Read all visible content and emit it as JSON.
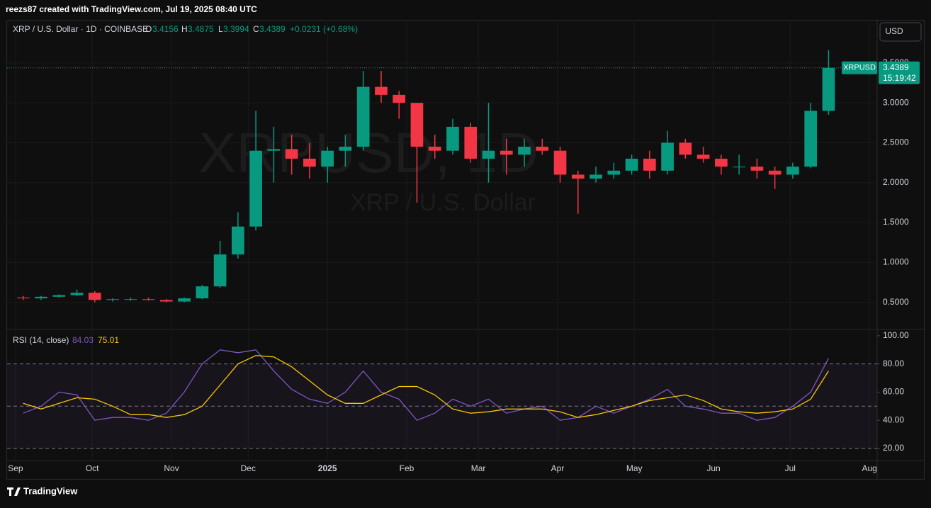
{
  "header": {
    "caption": "reezs87 created with TradingView.com, Jul 19, 2025 08:40 UTC"
  },
  "toolbar": {
    "currency": "USD"
  },
  "footer": {
    "brand": "TradingView"
  },
  "chart_data": [
    {
      "type": "candlestick",
      "title": "XRP / U.S. Dollar · 1D · COINBASE",
      "quote_labels": {
        "open": "O",
        "high": "H",
        "low": "L",
        "close": "C"
      },
      "quote": {
        "open": 3.4156,
        "high": 3.4875,
        "low": 3.3994,
        "close": 3.4389
      },
      "change": "+0.0231 (+0.68%)",
      "watermark": "XRPUSD, 1D",
      "watermark_subtitle": "XRP / U.S. Dollar",
      "symbol": "XRPUSD",
      "countdown": "15:19:42",
      "up_color": "#089981",
      "down_color": "#f23645",
      "x": [
        0,
        7,
        14,
        21,
        28,
        35,
        42,
        49,
        56,
        63,
        70,
        77,
        84,
        91,
        98,
        105,
        112,
        119,
        126,
        133,
        140,
        147,
        154,
        161,
        168,
        175,
        182,
        189,
        196,
        203,
        210,
        217,
        224,
        231,
        238,
        245,
        252,
        259,
        266,
        273,
        280,
        287,
        294,
        301,
        308,
        315
      ],
      "open": [
        0.56,
        0.55,
        0.57,
        0.59,
        0.62,
        0.53,
        0.54,
        0.54,
        0.53,
        0.51,
        0.55,
        0.7,
        1.1,
        1.45,
        2.4,
        2.42,
        2.3,
        2.2,
        2.4,
        2.45,
        3.2,
        3.1,
        3.0,
        2.45,
        2.4,
        2.7,
        2.3,
        2.4,
        2.35,
        2.45,
        2.4,
        2.1,
        2.05,
        2.1,
        2.15,
        2.3,
        2.15,
        2.5,
        2.35,
        2.3,
        2.2,
        2.2,
        2.15,
        2.1,
        2.2,
        2.9
      ],
      "high": [
        0.58,
        0.58,
        0.6,
        0.66,
        0.64,
        0.55,
        0.56,
        0.56,
        0.54,
        0.56,
        0.72,
        1.27,
        1.63,
        2.9,
        2.7,
        2.6,
        2.5,
        2.45,
        2.6,
        3.4,
        3.4,
        3.15,
        3.0,
        2.6,
        2.8,
        2.75,
        3.0,
        2.55,
        2.55,
        2.55,
        2.45,
        2.15,
        2.2,
        2.25,
        2.35,
        2.4,
        2.65,
        2.55,
        2.45,
        2.35,
        2.35,
        2.3,
        2.2,
        2.25,
        3.0,
        3.66
      ],
      "low": [
        0.53,
        0.53,
        0.56,
        0.58,
        0.5,
        0.51,
        0.52,
        0.52,
        0.5,
        0.5,
        0.54,
        0.68,
        1.05,
        1.4,
        2.0,
        2.1,
        2.05,
        2.0,
        2.2,
        2.4,
        3.0,
        2.8,
        1.75,
        2.3,
        2.35,
        2.25,
        2.0,
        2.1,
        2.2,
        2.35,
        2.0,
        1.61,
        2.0,
        2.05,
        2.1,
        2.05,
        2.1,
        2.3,
        2.25,
        2.1,
        2.1,
        2.05,
        1.92,
        2.05,
        2.18,
        2.85
      ],
      "close": [
        0.55,
        0.57,
        0.59,
        0.62,
        0.53,
        0.54,
        0.54,
        0.53,
        0.51,
        0.55,
        0.7,
        1.1,
        1.45,
        2.4,
        2.42,
        2.3,
        2.2,
        2.4,
        2.45,
        3.2,
        3.1,
        3.0,
        2.45,
        2.4,
        2.7,
        2.3,
        2.4,
        2.35,
        2.45,
        2.4,
        2.1,
        2.05,
        2.1,
        2.15,
        2.3,
        2.15,
        2.5,
        2.35,
        2.3,
        2.2,
        2.2,
        2.15,
        2.1,
        2.2,
        2.9,
        3.4389
      ],
      "xlim": [
        -3.3,
        337
      ],
      "xticks": [
        {
          "value": 0,
          "label": "Sep"
        },
        {
          "value": 30,
          "label": "Oct"
        },
        {
          "value": 61,
          "label": "Nov"
        },
        {
          "value": 91,
          "label": "Dec"
        },
        {
          "value": 122,
          "label": "2025"
        },
        {
          "value": 153,
          "label": "Feb"
        },
        {
          "value": 181,
          "label": "Mar"
        },
        {
          "value": 212,
          "label": "Apr"
        },
        {
          "value": 242,
          "label": "May"
        },
        {
          "value": 273,
          "label": "Jun"
        },
        {
          "value": 303,
          "label": "Jul"
        },
        {
          "value": 334,
          "label": "Aug"
        }
      ],
      "ylim": [
        0.16,
        4.04
      ],
      "yticks": [
        {
          "value": 0.5,
          "label": "0.5000"
        },
        {
          "value": 1,
          "label": "1.0000"
        },
        {
          "value": 1.5,
          "label": "1.5000"
        },
        {
          "value": 2,
          "label": "2.0000"
        },
        {
          "value": 2.5,
          "label": "2.5000"
        },
        {
          "value": 3,
          "label": "3.0000"
        },
        {
          "value": 3.5,
          "label": "3.5000"
        }
      ],
      "grid": true
    },
    {
      "type": "line",
      "title": "RSI (14, close)",
      "x": [
        0,
        7,
        14,
        21,
        28,
        35,
        42,
        49,
        56,
        63,
        70,
        77,
        84,
        91,
        98,
        105,
        112,
        119,
        126,
        133,
        140,
        147,
        154,
        161,
        168,
        175,
        182,
        189,
        196,
        203,
        210,
        217,
        224,
        231,
        238,
        245,
        252,
        259,
        266,
        273,
        280,
        287,
        294,
        301,
        308,
        315
      ],
      "series": [
        {
          "color": "#7e57c2",
          "values": [
            45,
            50,
            60,
            58,
            40,
            42,
            42,
            40,
            45,
            60,
            80,
            90,
            88,
            90,
            75,
            62,
            55,
            52,
            60,
            75,
            60,
            55,
            40,
            45,
            55,
            50,
            55,
            45,
            48,
            50,
            40,
            42,
            50,
            45,
            50,
            55,
            62,
            50,
            48,
            45,
            45,
            40,
            42,
            50,
            60,
            84.03
          ]
        },
        {
          "color": "#f7c600",
          "values": [
            52,
            48,
            52,
            56,
            55,
            50,
            44,
            44,
            42,
            44,
            50,
            65,
            80,
            86,
            85,
            78,
            68,
            58,
            52,
            52,
            58,
            64,
            64,
            58,
            48,
            45,
            46,
            48,
            48,
            48,
            46,
            42,
            44,
            47,
            50,
            54,
            56,
            58,
            54,
            48,
            46,
            45,
            46,
            48,
            55,
            75.01
          ]
        }
      ],
      "ylim": [
        11.4,
        104.5
      ],
      "yticks": [
        {
          "value": 100,
          "label": "100.00"
        },
        {
          "value": 80,
          "label": "80.00"
        },
        {
          "value": 60,
          "label": "60.00"
        },
        {
          "value": 40,
          "label": "40.00"
        },
        {
          "value": 20,
          "label": "20.00"
        }
      ],
      "levels": [
        80,
        50,
        20
      ]
    }
  ]
}
